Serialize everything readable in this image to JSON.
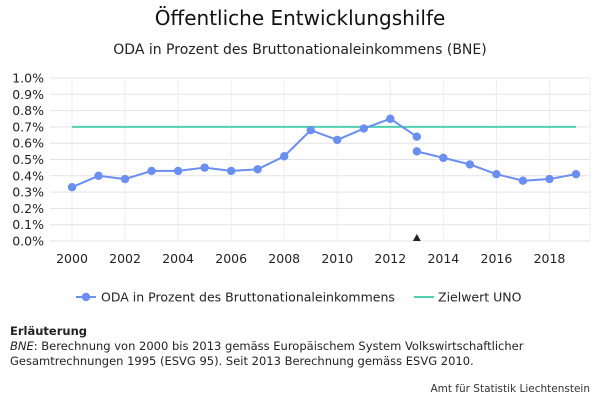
{
  "chart_data": {
    "type": "line",
    "title": "Öffentliche Entwicklungshilfe",
    "subtitle": "ODA in Prozent des Bruttonationaleinkommens (BNE)",
    "x_ticks": [
      "2000",
      "2002",
      "2004",
      "2006",
      "2008",
      "2010",
      "2012",
      "2014",
      "2016",
      "2018"
    ],
    "y_ticks": [
      "0.0%",
      "0.1%",
      "0.2%",
      "0.3%",
      "0.4%",
      "0.5%",
      "0.6%",
      "0.7%",
      "0.8%",
      "0.9%",
      "1.0%"
    ],
    "xlim": [
      2000,
      2019
    ],
    "ylim": [
      0,
      1.0
    ],
    "grid": true,
    "legend_position": "bottom",
    "series": [
      {
        "name": "ODA in Prozent des Bruttonationaleinkommens",
        "color": "#6b8ff0",
        "segments": [
          {
            "x": [
              2000,
              2001,
              2002,
              2003,
              2004,
              2005,
              2006,
              2007,
              2008,
              2009,
              2010,
              2011,
              2012,
              2013
            ],
            "y": [
              0.33,
              0.4,
              0.38,
              0.43,
              0.43,
              0.45,
              0.43,
              0.44,
              0.52,
              0.68,
              0.62,
              0.69,
              0.75,
              0.64
            ]
          },
          {
            "x": [
              2013,
              2014,
              2015,
              2016,
              2017,
              2018,
              2019
            ],
            "y": [
              0.55,
              0.51,
              0.47,
              0.41,
              0.37,
              0.38,
              0.41
            ]
          }
        ]
      },
      {
        "name": "Zielwert UNO",
        "color": "#4fd1b0",
        "x": [
          2000,
          2019
        ],
        "y": [
          0.7,
          0.7
        ]
      }
    ],
    "annotations": [
      {
        "type": "marker",
        "shape": "triangle",
        "x": 2013,
        "y": 0,
        "color": "#222222"
      }
    ]
  },
  "notes": {
    "heading": "Erläuterung",
    "abbr": "BNE",
    "text": ": Berechnung von 2000 bis 2013 gemäss Europäischem System Volkswirtschaftlicher Gesamtrechnungen 1995 (ESVG 95). Seit 2013 Berechnung gemäss ESVG 2010."
  },
  "credit": "Amt für Statistik Liechtenstein"
}
